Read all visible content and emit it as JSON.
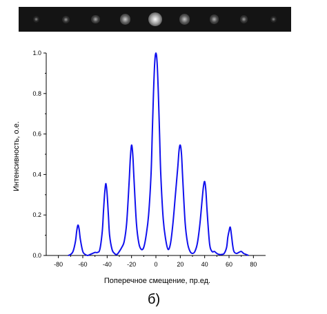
{
  "figure": {
    "panel_label": "б)",
    "strip_spot_positions": [
      -80,
      -60,
      -40,
      -20,
      0,
      20,
      40,
      60,
      80
    ],
    "strip_spot_intensities": [
      0.12,
      0.25,
      0.4,
      0.65,
      1.0,
      0.6,
      0.45,
      0.3,
      0.12
    ]
  },
  "chart_data": {
    "type": "line",
    "title": "",
    "xlabel": "Поперечное смещение, пр.ед.",
    "ylabel": "Интенсивность, о.е.",
    "xlim": [
      -90,
      90
    ],
    "ylim": [
      0,
      1.0
    ],
    "xticks": [
      -80,
      -60,
      -40,
      -20,
      0,
      20,
      40,
      60,
      80
    ],
    "xtick_labels": [
      "-80",
      "-60",
      "-40",
      "-20",
      "0",
      "20",
      "40",
      "60",
      "80"
    ],
    "yticks": [
      0.0,
      0.2,
      0.4,
      0.6,
      0.8,
      1.0
    ],
    "ytick_labels": [
      "0.0",
      "0.2",
      "0.4",
      "0.6",
      "0.8",
      "1.0"
    ],
    "grid": false,
    "line_color": "#1010ee",
    "series": [
      {
        "peaks": [
          {
            "x": -64,
            "y": 0.15
          },
          {
            "x": -41,
            "y": 0.355
          },
          {
            "x": -20,
            "y": 0.545
          },
          {
            "x": 0,
            "y": 1.0
          },
          {
            "x": 20,
            "y": 0.545
          },
          {
            "x": 40,
            "y": 0.365
          },
          {
            "x": 61,
            "y": 0.14
          }
        ],
        "x": [
          -72,
          -70,
          -68,
          -66,
          -65,
          -64,
          -63,
          -62,
          -60,
          -58,
          -56,
          -54,
          -52,
          -50,
          -48,
          -46,
          -44,
          -43,
          -42,
          -41,
          -40,
          -39,
          -38,
          -36,
          -34,
          -32,
          -30,
          -28,
          -26,
          -24,
          -22,
          -21,
          -20,
          -19,
          -18,
          -16,
          -14,
          -12,
          -10,
          -8,
          -6,
          -4,
          -3,
          -2,
          -1,
          0,
          1,
          2,
          3,
          4,
          6,
          8,
          10,
          12,
          14,
          16,
          18,
          19,
          20,
          21,
          22,
          24,
          26,
          28,
          30,
          32,
          34,
          36,
          38,
          39,
          40,
          41,
          42,
          44,
          46,
          48,
          50,
          52,
          54,
          56,
          58,
          59,
          60,
          61,
          62,
          63,
          64,
          66,
          68,
          70,
          72,
          74,
          76
        ],
        "y": [
          0.0,
          0.005,
          0.02,
          0.07,
          0.12,
          0.15,
          0.13,
          0.08,
          0.02,
          0.005,
          0.0,
          0.005,
          0.01,
          0.015,
          0.015,
          0.03,
          0.12,
          0.22,
          0.31,
          0.355,
          0.3,
          0.2,
          0.1,
          0.03,
          0.01,
          0.005,
          0.02,
          0.04,
          0.07,
          0.16,
          0.36,
          0.48,
          0.545,
          0.5,
          0.38,
          0.16,
          0.06,
          0.03,
          0.04,
          0.1,
          0.2,
          0.4,
          0.6,
          0.8,
          0.95,
          1.0,
          0.95,
          0.8,
          0.6,
          0.4,
          0.18,
          0.08,
          0.03,
          0.06,
          0.16,
          0.3,
          0.44,
          0.52,
          0.545,
          0.5,
          0.38,
          0.16,
          0.06,
          0.02,
          0.01,
          0.02,
          0.06,
          0.15,
          0.28,
          0.34,
          0.365,
          0.32,
          0.22,
          0.06,
          0.02,
          0.02,
          0.01,
          0.005,
          0.005,
          0.01,
          0.04,
          0.09,
          0.12,
          0.14,
          0.1,
          0.05,
          0.02,
          0.01,
          0.015,
          0.02,
          0.01,
          0.005,
          0.0
        ]
      }
    ]
  }
}
